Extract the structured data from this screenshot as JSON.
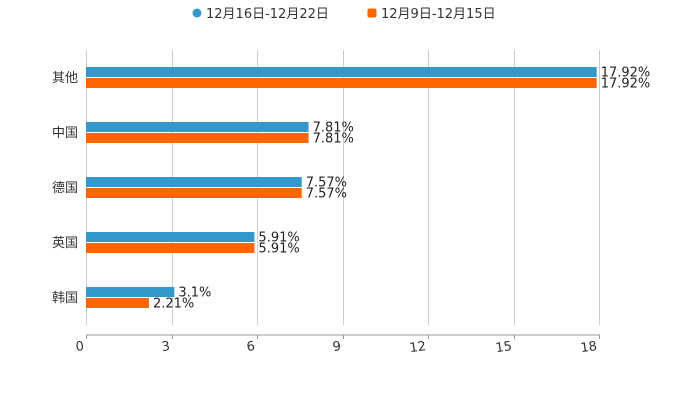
{
  "chart_data": {
    "type": "bar",
    "orientation": "horizontal",
    "categories": [
      "其他",
      "中国",
      "德国",
      "英国",
      "韩国"
    ],
    "series": [
      {
        "name": "12月16日-12月22日",
        "color": "#3399cc",
        "values": [
          17.92,
          7.81,
          7.57,
          5.91,
          3.1
        ],
        "labels": [
          "17.92%",
          "7.81%",
          "7.57%",
          "5.91%",
          "3.1%"
        ]
      },
      {
        "name": "12月9日-12月15日",
        "color": "#ff6600",
        "values": [
          17.92,
          7.81,
          7.57,
          5.91,
          2.21
        ],
        "labels": [
          "17.92%",
          "7.81%",
          "7.57%",
          "5.91%",
          "2.21%"
        ]
      }
    ],
    "xlim": [
      0,
      18
    ],
    "xticks": [
      "0",
      "3",
      "6",
      "9",
      "12",
      "15",
      "18"
    ],
    "grid": true,
    "legend_position": "top-center",
    "title": "",
    "xlabel": "",
    "ylabel": ""
  }
}
